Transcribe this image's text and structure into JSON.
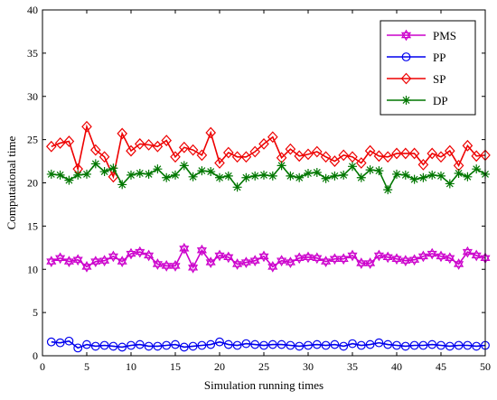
{
  "chart_data": {
    "type": "line",
    "title": "",
    "xlabel": "Simulation running times",
    "ylabel": "Computational time",
    "xlim": [
      0,
      50
    ],
    "ylim": [
      0,
      40
    ],
    "xticks": [
      0,
      5,
      10,
      15,
      20,
      25,
      30,
      35,
      40,
      45,
      50
    ],
    "yticks": [
      0,
      5,
      10,
      15,
      20,
      25,
      30,
      35,
      40
    ],
    "grid": false,
    "legend_position": "top-right",
    "x": [
      1,
      2,
      3,
      4,
      5,
      6,
      7,
      8,
      9,
      10,
      11,
      12,
      13,
      14,
      15,
      16,
      17,
      18,
      19,
      20,
      21,
      22,
      23,
      24,
      25,
      26,
      27,
      28,
      29,
      30,
      31,
      32,
      33,
      34,
      35,
      36,
      37,
      38,
      39,
      40,
      41,
      42,
      43,
      44,
      45,
      46,
      47,
      48,
      49,
      50
    ],
    "series": [
      {
        "name": "PMS",
        "color": "#cc00cc",
        "marker": "hexagram",
        "values": [
          10.9,
          11.3,
          10.9,
          11.1,
          10.3,
          10.9,
          11.0,
          11.5,
          10.9,
          11.8,
          12.0,
          11.6,
          10.6,
          10.4,
          10.4,
          12.4,
          10.2,
          12.2,
          10.8,
          11.6,
          11.4,
          10.6,
          10.8,
          11.0,
          11.5,
          10.3,
          11.0,
          10.8,
          11.3,
          11.4,
          11.3,
          10.9,
          11.2,
          11.2,
          11.6,
          10.7,
          10.7,
          11.6,
          11.4,
          11.2,
          11.0,
          11.1,
          11.5,
          11.8,
          11.5,
          11.3,
          10.6,
          12.0,
          11.6,
          11.3
        ]
      },
      {
        "name": "PP",
        "color": "#0000ee",
        "marker": "circle",
        "values": [
          1.6,
          1.5,
          1.7,
          0.9,
          1.3,
          1.1,
          1.2,
          1.1,
          1.0,
          1.2,
          1.3,
          1.1,
          1.1,
          1.2,
          1.3,
          1.0,
          1.1,
          1.2,
          1.3,
          1.6,
          1.3,
          1.2,
          1.4,
          1.3,
          1.2,
          1.3,
          1.3,
          1.2,
          1.1,
          1.2,
          1.3,
          1.2,
          1.3,
          1.1,
          1.4,
          1.2,
          1.3,
          1.5,
          1.3,
          1.2,
          1.1,
          1.2,
          1.2,
          1.3,
          1.2,
          1.1,
          1.2,
          1.2,
          1.1,
          1.2
        ]
      },
      {
        "name": "SP",
        "color": "#ee0000",
        "marker": "diamond",
        "values": [
          24.2,
          24.6,
          24.8,
          21.6,
          26.5,
          23.8,
          23.0,
          20.7,
          25.7,
          23.7,
          24.5,
          24.4,
          24.2,
          24.9,
          23.0,
          24.1,
          23.8,
          23.2,
          25.8,
          22.3,
          23.5,
          23.0,
          23.0,
          23.6,
          24.5,
          25.3,
          22.9,
          23.9,
          23.1,
          23.3,
          23.6,
          23.0,
          22.5,
          23.2,
          23.0,
          22.3,
          23.7,
          23.1,
          23.0,
          23.4,
          23.4,
          23.4,
          22.1,
          23.4,
          23.0,
          23.7,
          22.0,
          24.3,
          23.1,
          23.2
        ]
      },
      {
        "name": "DP",
        "color": "#007700",
        "marker": "asterisk",
        "values": [
          21.0,
          20.9,
          20.3,
          20.9,
          21.0,
          22.2,
          21.3,
          21.7,
          19.8,
          20.9,
          21.1,
          21.0,
          21.6,
          20.6,
          20.9,
          22.0,
          20.7,
          21.4,
          21.3,
          20.6,
          20.8,
          19.5,
          20.6,
          20.8,
          20.9,
          20.8,
          22.0,
          20.8,
          20.6,
          21.1,
          21.2,
          20.5,
          20.8,
          20.9,
          21.9,
          20.6,
          21.5,
          21.4,
          19.2,
          21.0,
          20.9,
          20.4,
          20.6,
          20.9,
          20.8,
          19.9,
          21.1,
          20.7,
          21.6,
          21.0
        ]
      }
    ]
  }
}
